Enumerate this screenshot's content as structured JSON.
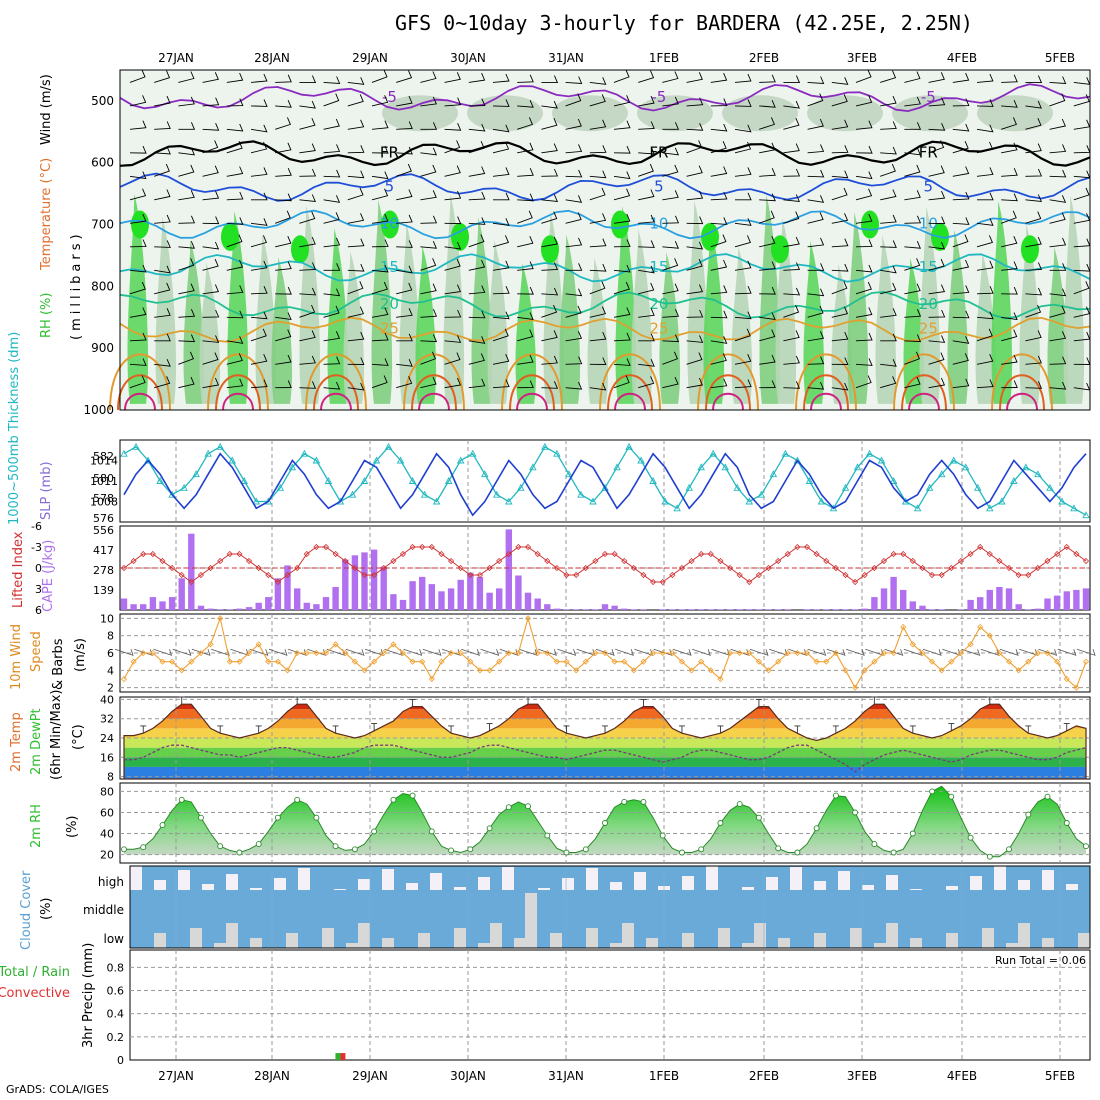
{
  "title": "GFS 0~10day 3-hourly for BARDERA (42.25E, 2.25N)",
  "credit": "GrADS: COLA/IGES",
  "dates": [
    "27JAN",
    "28JAN",
    "29JAN",
    "30JAN",
    "31JAN",
    "1FEB",
    "2FEB",
    "3FEB",
    "4FEB",
    "5FEB"
  ],
  "colors": {
    "temp_cold": "#1f4fd8",
    "temp_mid": "#2aa0e0",
    "temp_warm": "#e0a030",
    "temp_hot": "#d02080",
    "fr": "#000000",
    "neg5": "#8a2bc0",
    "rh": "#2fbf2f",
    "slp": "#1f3fd0",
    "thick": "#20b8c0",
    "li": "#d03030",
    "cape": "#b070f0",
    "wind10": "#f0a030",
    "cloud": "#6aaad8",
    "rain": "#30b030",
    "conv": "#e03030"
  },
  "chart_data": [
    {
      "id": "upper_air",
      "type": "heatmap",
      "ylabel_left": [
        "RH (%)",
        "Temperature (°C)",
        "Wind (m/s)"
      ],
      "ylabel_inner": "(millibars)",
      "yticks": [
        "500",
        "600",
        "700",
        "800",
        "900",
        "1000"
      ],
      "ylim": [
        1000,
        450
      ],
      "contours": [
        {
          "label": "-5",
          "level_mb": 495
        },
        {
          "label": "FR",
          "level_mb": 585
        },
        {
          "label": "5",
          "level_mb": 640
        },
        {
          "label": "10",
          "level_mb": 700
        },
        {
          "label": "15",
          "level_mb": 770
        },
        {
          "label": "20",
          "level_mb": 830
        },
        {
          "label": "25",
          "level_mb": 870
        }
      ],
      "rh_labels": [
        "50",
        "30",
        "70",
        "60"
      ]
    },
    {
      "id": "slp_thickness",
      "type": "line",
      "ylabel_left": "1000~500mb Thickness (dm)",
      "ylabel_right": "SLP (mb)",
      "yticks_left": [
        "582",
        "580",
        "578",
        "576"
      ],
      "yticks_right": [
        "1014",
        "1011",
        "1008"
      ],
      "ylim_slp": [
        1005,
        1017
      ],
      "series": [
        {
          "name": "SLP",
          "values": [
            1009,
            1012,
            1014,
            1012,
            1009,
            1007,
            1009,
            1012,
            1015,
            1013,
            1010,
            1007,
            1008,
            1011,
            1014,
            1012,
            1009,
            1007,
            1008,
            1011,
            1014,
            1013,
            1010,
            1007,
            1009,
            1012,
            1015,
            1013,
            1009,
            1006,
            1008,
            1011,
            1014,
            1012,
            1009,
            1007,
            1008,
            1011,
            1014,
            1013,
            1010,
            1007,
            1009,
            1012,
            1015,
            1013,
            1010,
            1007,
            1009,
            1012,
            1015,
            1013,
            1009,
            1007,
            1008,
            1011,
            1014,
            1012,
            1009,
            1007,
            1008,
            1011,
            1014,
            1013,
            1010,
            1008,
            1009,
            1012,
            1014,
            1012,
            1009,
            1007,
            1008,
            1011,
            1014,
            1012,
            1010,
            1008,
            1010,
            1013,
            1015
          ]
        },
        {
          "name": "Thickness",
          "values": [
            1015,
            1016,
            1014,
            1011,
            1009,
            1010,
            1012,
            1015,
            1016,
            1014,
            1011,
            1008,
            1008,
            1010,
            1013,
            1015,
            1014,
            1011,
            1008,
            1009,
            1011,
            1014,
            1016,
            1014,
            1011,
            1009,
            1008,
            1011,
            1014,
            1015,
            1012,
            1009,
            1008,
            1010,
            1013,
            1016,
            1015,
            1012,
            1009,
            1008,
            1010,
            1013,
            1016,
            1014,
            1011,
            1008,
            1007,
            1010,
            1013,
            1015,
            1013,
            1010,
            1008,
            1009,
            1012,
            1015,
            1014,
            1011,
            1008,
            1007,
            1010,
            1013,
            1015,
            1014,
            1011,
            1008,
            1007,
            1010,
            1012,
            1014,
            1013,
            1010,
            1007,
            1008,
            1011,
            1013,
            1012,
            1010,
            1008,
            1007,
            1006
          ]
        }
      ]
    },
    {
      "id": "cape_li",
      "type": "bar",
      "ylabel_left": "Lifted Index",
      "ylabel_right": "CAPE (J/kg)",
      "yticks_left": [
        "-6",
        "-3",
        "0",
        "3",
        "6"
      ],
      "yticks_right": [
        "556",
        "417",
        "278",
        "139"
      ],
      "ylim_cape": [
        0,
        556
      ],
      "cape": [
        80,
        40,
        40,
        90,
        60,
        90,
        220,
        530,
        30,
        10,
        5,
        5,
        10,
        20,
        50,
        90,
        220,
        310,
        150,
        50,
        40,
        90,
        160,
        350,
        380,
        400,
        420,
        300,
        110,
        70,
        200,
        230,
        180,
        130,
        150,
        210,
        260,
        230,
        120,
        150,
        560,
        240,
        120,
        80,
        40,
        10,
        5,
        5,
        5,
        5,
        40,
        30,
        10,
        5,
        5,
        0,
        5,
        5,
        5,
        5,
        5,
        5,
        5,
        5,
        5,
        5,
        5,
        5,
        5,
        5,
        0,
        5,
        5,
        5,
        5,
        5,
        5,
        10,
        90,
        150,
        230,
        140,
        60,
        30,
        5,
        5,
        0,
        5,
        70,
        90,
        140,
        160,
        150,
        40,
        5,
        10,
        80,
        100,
        130,
        140,
        150
      ],
      "li": [
        0,
        -1,
        -2,
        -2,
        -1,
        0,
        1,
        2,
        1,
        0,
        -1,
        -2,
        -2,
        -1,
        0,
        1,
        2,
        1,
        0,
        -2,
        -3,
        -3,
        -2,
        -1,
        0,
        1,
        1,
        0,
        -1,
        -2,
        -3,
        -3,
        -3,
        -2,
        -1,
        0,
        1,
        1,
        0,
        -1,
        -2,
        -3,
        -3,
        -2,
        -1,
        0,
        1,
        1,
        0,
        -1,
        -2,
        -2,
        -1,
        0,
        1,
        2,
        2,
        1,
        0,
        -1,
        -2,
        -2,
        -1,
        0,
        1,
        2,
        1,
        0,
        -1,
        -2,
        -3,
        -3,
        -2,
        -1,
        0,
        1,
        2,
        1,
        0,
        -1,
        -2,
        -2,
        -1,
        0,
        1,
        1,
        0,
        -1,
        -2,
        -3,
        -2,
        -1,
        0,
        1,
        1,
        0,
        -1,
        -2,
        -3,
        -2,
        -1
      ]
    },
    {
      "id": "wind10",
      "type": "line",
      "ylabel_left": [
        "10m Wind",
        "Speed",
        "& Barbs"
      ],
      "unit": "(m/s)",
      "yticks": [
        "10",
        "8",
        "6",
        "4",
        "2"
      ],
      "ylim": [
        1.5,
        10.5
      ],
      "values": [
        3,
        5,
        6,
        6,
        5,
        5,
        4,
        5,
        6,
        7,
        10,
        5,
        5,
        6,
        7,
        5,
        5,
        4,
        6,
        6,
        6,
        6,
        7,
        6,
        5,
        4,
        5,
        6,
        7,
        6,
        5,
        5,
        3,
        5,
        6,
        6,
        5,
        4,
        4,
        5,
        6,
        6,
        10,
        6,
        6,
        5,
        5,
        4,
        5,
        6,
        6,
        5,
        5,
        4,
        5,
        6,
        6,
        6,
        5,
        4,
        5,
        4,
        3,
        6,
        6,
        6,
        5,
        4,
        5,
        6,
        6,
        6,
        5,
        5,
        6,
        4,
        2,
        4,
        5,
        6,
        6,
        9,
        7,
        6,
        5,
        4,
        5,
        6,
        7,
        9,
        8,
        6,
        5,
        4,
        5,
        6,
        6,
        5,
        3,
        2,
        5
      ]
    },
    {
      "id": "t2m",
      "type": "area",
      "ylabel_left": [
        "2m Temp",
        "2m DewPt",
        "(6hr Min/Max)"
      ],
      "unit": "(°C)",
      "yticks": [
        "40",
        "32",
        "24",
        "16",
        "8"
      ],
      "ylim": [
        7,
        41
      ],
      "temp": [
        25,
        25,
        26,
        28,
        31,
        35,
        38,
        38,
        33,
        28,
        26,
        25,
        24,
        25,
        26,
        28,
        31,
        35,
        38,
        38,
        33,
        28,
        26,
        25,
        24,
        25,
        27,
        29,
        31,
        35,
        37,
        37,
        33,
        29,
        26,
        25,
        24,
        25,
        27,
        29,
        32,
        36,
        38,
        38,
        33,
        28,
        26,
        25,
        24,
        25,
        26,
        28,
        31,
        35,
        37,
        37,
        33,
        28,
        26,
        25,
        24,
        25,
        26,
        28,
        31,
        34,
        37,
        37,
        32,
        28,
        26,
        24,
        23,
        24,
        26,
        28,
        31,
        35,
        38,
        38,
        33,
        28,
        26,
        25,
        24,
        25,
        27,
        29,
        32,
        36,
        38,
        38,
        33,
        29,
        26,
        25,
        24,
        25,
        27,
        29,
        28
      ],
      "dewpt": [
        15,
        15,
        16,
        18,
        20,
        21,
        21,
        20,
        19,
        18,
        17,
        17,
        16,
        17,
        18,
        19,
        20,
        20,
        19,
        18,
        17,
        16,
        16,
        17,
        18,
        20,
        21,
        21,
        21,
        20,
        19,
        18,
        17,
        16,
        16,
        17,
        18,
        20,
        21,
        21,
        20,
        19,
        18,
        17,
        16,
        16,
        15,
        16,
        17,
        18,
        19,
        19,
        18,
        17,
        16,
        15,
        14,
        15,
        16,
        18,
        19,
        19,
        18,
        17,
        16,
        15,
        15,
        16,
        18,
        20,
        21,
        21,
        19,
        17,
        15,
        13,
        10,
        13,
        15,
        17,
        18,
        19,
        18,
        17,
        16,
        15,
        14,
        15,
        17,
        18,
        19,
        19,
        18,
        17,
        16,
        15,
        15,
        16,
        18,
        19,
        20
      ]
    },
    {
      "id": "rh2m",
      "type": "area",
      "ylabel_left": "2m RH",
      "unit": "(%)",
      "yticks": [
        "80",
        "60",
        "40",
        "20"
      ],
      "ylim": [
        12,
        88
      ],
      "values": [
        25,
        25,
        27,
        35,
        48,
        62,
        72,
        70,
        55,
        40,
        28,
        24,
        22,
        25,
        30,
        42,
        55,
        65,
        72,
        68,
        55,
        38,
        28,
        24,
        25,
        30,
        42,
        58,
        72,
        78,
        76,
        60,
        42,
        28,
        24,
        22,
        25,
        32,
        45,
        58,
        65,
        70,
        66,
        52,
        38,
        26,
        22,
        22,
        25,
        35,
        50,
        65,
        70,
        72,
        70,
        55,
        38,
        26,
        22,
        22,
        25,
        35,
        50,
        62,
        68,
        65,
        55,
        40,
        26,
        22,
        22,
        30,
        45,
        62,
        76,
        75,
        60,
        42,
        30,
        24,
        22,
        25,
        40,
        62,
        80,
        85,
        75,
        55,
        36,
        24,
        18,
        18,
        25,
        40,
        58,
        70,
        75,
        68,
        50,
        35,
        28
      ]
    },
    {
      "id": "cloud",
      "type": "heatmap",
      "ylabel_left": "Cloud Cover",
      "unit": "(%)",
      "rows": [
        "high",
        "middle",
        "low"
      ]
    },
    {
      "id": "precip",
      "type": "bar",
      "ylabel_left": [
        "Total / Rain",
        "Convective"
      ],
      "ylabel_inner": "3hr Precip (mm)",
      "yticks": [
        "0.8",
        "0.6",
        "0.4",
        "0.2",
        "0"
      ],
      "ylim": [
        0,
        0.95
      ],
      "run_total": "Run Total = 0.06",
      "values": [
        {
          "x_step": 18,
          "total": 0.06,
          "convective": 0.06
        }
      ]
    }
  ]
}
